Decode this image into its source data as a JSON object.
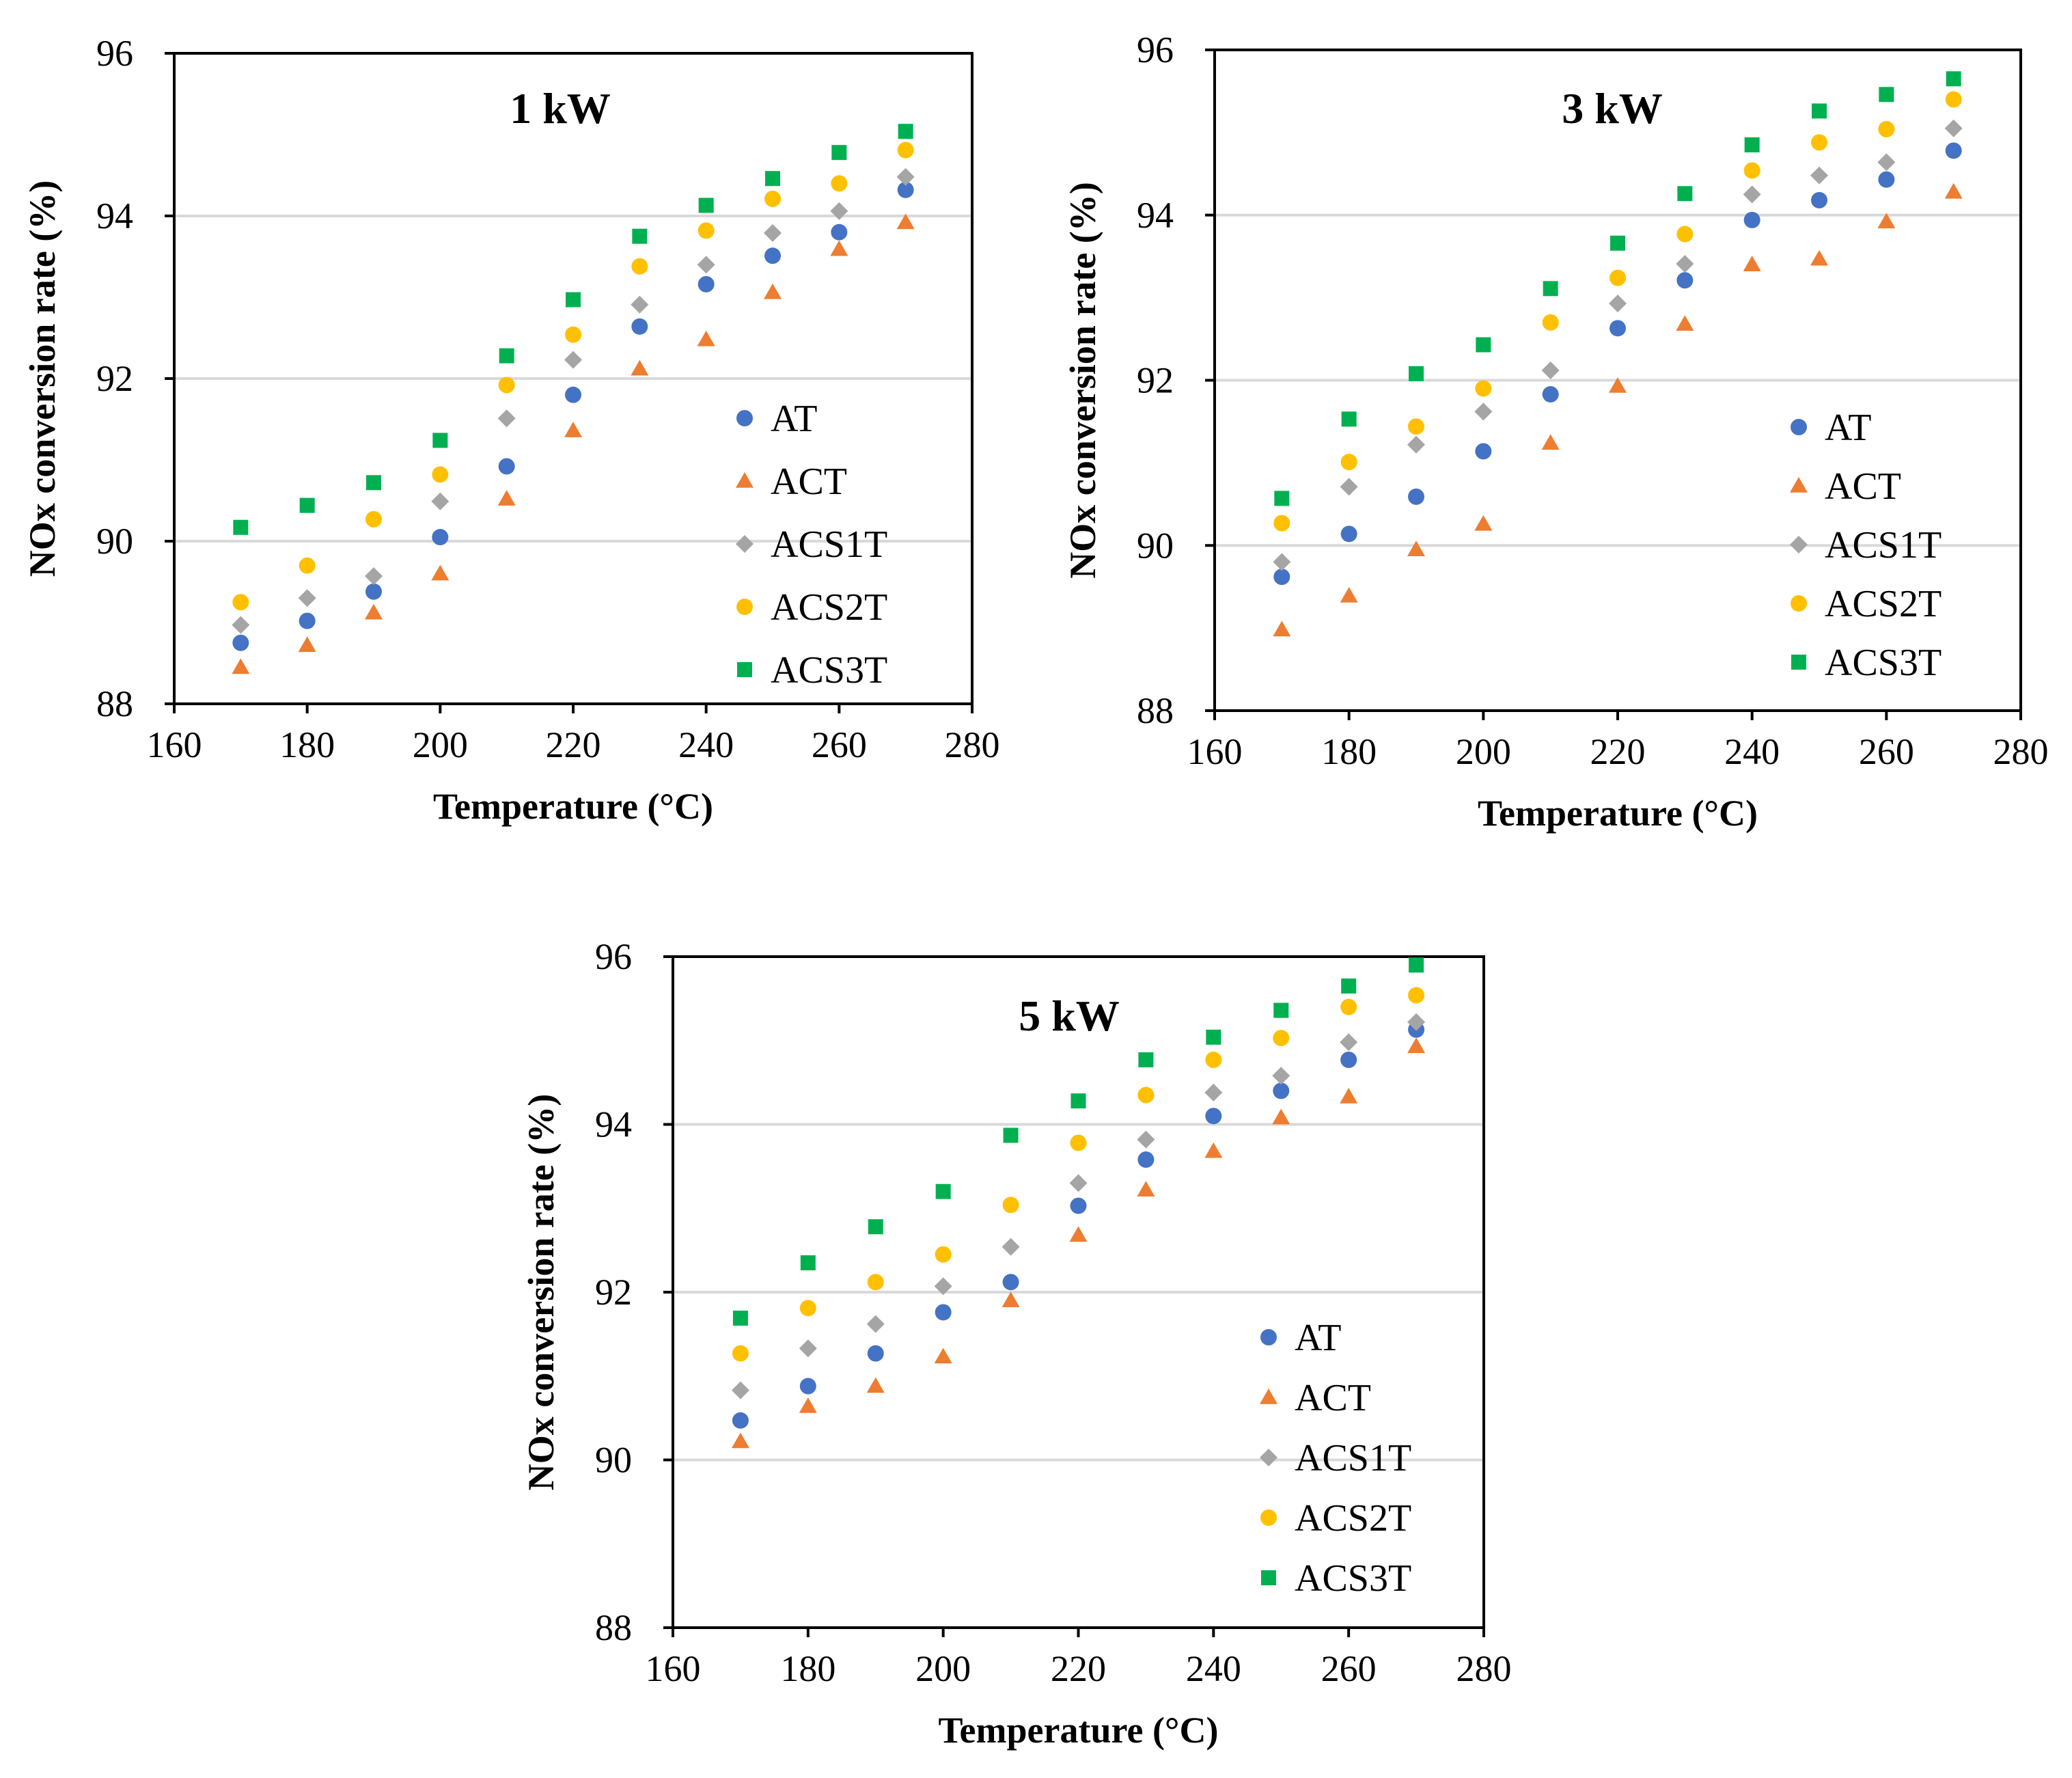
{
  "chart_data": [
    {
      "type": "scatter",
      "title": "1 kW",
      "xlabel": "Temperature (°C)",
      "ylabel": "NOx conversion rate (%)",
      "xlim": [
        160,
        280
      ],
      "ylim": [
        88,
        96
      ],
      "xticks": [
        160,
        180,
        200,
        220,
        240,
        260,
        280
      ],
      "yticks": [
        88,
        90,
        92,
        94,
        96
      ],
      "grid": "horizontal",
      "legend_position": "bottom-right",
      "x": [
        170,
        180,
        190,
        200,
        210,
        220,
        230,
        240,
        250,
        260,
        270
      ],
      "series": [
        {
          "name": "AT",
          "marker": "circle",
          "color": "#4472C4",
          "values": [
            88.75,
            89.02,
            89.38,
            90.05,
            90.92,
            91.8,
            92.64,
            93.16,
            93.51,
            93.8,
            94.32
          ]
        },
        {
          "name": "ACT",
          "marker": "triangle",
          "color": "#ED7D31",
          "values": [
            88.45,
            88.72,
            89.12,
            89.6,
            90.52,
            91.36,
            92.12,
            92.48,
            93.06,
            93.59,
            93.92
          ]
        },
        {
          "name": "ACS1T",
          "marker": "diamond",
          "color": "#A5A5A5",
          "values": [
            88.97,
            89.3,
            89.57,
            90.49,
            91.51,
            92.23,
            92.91,
            93.4,
            93.79,
            94.06,
            94.48
          ]
        },
        {
          "name": "ACS2T",
          "marker": "circle",
          "color": "#FFC000",
          "values": [
            89.25,
            89.7,
            90.27,
            90.82,
            91.92,
            92.54,
            93.38,
            93.82,
            94.21,
            94.4,
            94.81
          ]
        },
        {
          "name": "ACS3T",
          "marker": "square",
          "color": "#00B050",
          "values": [
            90.17,
            90.44,
            90.72,
            91.24,
            92.28,
            92.97,
            93.75,
            94.13,
            94.46,
            94.78,
            95.04
          ]
        }
      ]
    },
    {
      "type": "scatter",
      "title": "3 kW",
      "xlabel": "Temperature (°C)",
      "ylabel": "NOx conversion rate (%)",
      "xlim": [
        160,
        280
      ],
      "ylim": [
        88,
        96
      ],
      "xticks": [
        160,
        180,
        200,
        220,
        240,
        260,
        280
      ],
      "yticks": [
        88,
        90,
        92,
        94,
        96
      ],
      "grid": "horizontal",
      "legend_position": "bottom-right",
      "x": [
        170,
        180,
        190,
        200,
        210,
        220,
        230,
        240,
        250,
        260,
        270
      ],
      "series": [
        {
          "name": "AT",
          "marker": "circle",
          "color": "#4472C4",
          "values": [
            89.62,
            90.14,
            90.59,
            91.14,
            91.83,
            92.63,
            93.21,
            93.94,
            94.18,
            94.43,
            94.78
          ]
        },
        {
          "name": "ACT",
          "marker": "triangle",
          "color": "#ED7D31",
          "values": [
            88.98,
            89.39,
            89.95,
            90.26,
            91.24,
            91.93,
            92.68,
            93.4,
            93.47,
            93.92,
            94.28
          ]
        },
        {
          "name": "ACS1T",
          "marker": "diamond",
          "color": "#A5A5A5",
          "values": [
            89.8,
            90.71,
            91.22,
            91.62,
            92.12,
            92.93,
            93.41,
            94.25,
            94.48,
            94.64,
            95.05
          ]
        },
        {
          "name": "ACS2T",
          "marker": "circle",
          "color": "#FFC000",
          "values": [
            90.27,
            91.01,
            91.44,
            91.9,
            92.7,
            93.24,
            93.77,
            94.54,
            94.88,
            95.04,
            95.4
          ]
        },
        {
          "name": "ACS3T",
          "marker": "square",
          "color": "#00B050",
          "values": [
            90.57,
            91.53,
            92.08,
            92.43,
            93.11,
            93.66,
            94.26,
            94.85,
            95.26,
            95.46,
            95.65
          ]
        }
      ]
    },
    {
      "type": "scatter",
      "title": "5 kW",
      "xlabel": "Temperature (°C)",
      "ylabel": "NOx conversion rate (%)",
      "xlim": [
        160,
        280
      ],
      "ylim": [
        88,
        96
      ],
      "xticks": [
        160,
        180,
        200,
        220,
        240,
        260,
        280
      ],
      "yticks": [
        88,
        90,
        92,
        94,
        96
      ],
      "grid": "horizontal",
      "legend_position": "bottom-right",
      "x": [
        170,
        180,
        190,
        200,
        210,
        220,
        230,
        240,
        250,
        260,
        270
      ],
      "series": [
        {
          "name": "AT",
          "marker": "circle",
          "color": "#4472C4",
          "values": [
            90.47,
            90.88,
            91.27,
            91.76,
            92.12,
            93.03,
            93.58,
            94.1,
            94.4,
            94.77,
            95.13
          ]
        },
        {
          "name": "ACT",
          "marker": "triangle",
          "color": "#ED7D31",
          "values": [
            90.22,
            90.64,
            90.88,
            91.23,
            91.9,
            92.68,
            93.22,
            93.68,
            94.08,
            94.33,
            94.93
          ]
        },
        {
          "name": "ACS1T",
          "marker": "diamond",
          "color": "#A5A5A5",
          "values": [
            90.83,
            91.33,
            91.62,
            92.07,
            92.54,
            93.3,
            93.82,
            94.38,
            94.58,
            94.98,
            95.22
          ]
        },
        {
          "name": "ACS2T",
          "marker": "circle",
          "color": "#FFC000",
          "values": [
            91.27,
            91.81,
            92.12,
            92.45,
            93.04,
            93.78,
            94.35,
            94.77,
            95.03,
            95.4,
            95.54
          ]
        },
        {
          "name": "ACS3T",
          "marker": "square",
          "color": "#00B050",
          "values": [
            91.69,
            92.35,
            92.78,
            93.2,
            93.87,
            94.28,
            94.77,
            95.04,
            95.36,
            95.65,
            95.9
          ]
        }
      ]
    }
  ]
}
